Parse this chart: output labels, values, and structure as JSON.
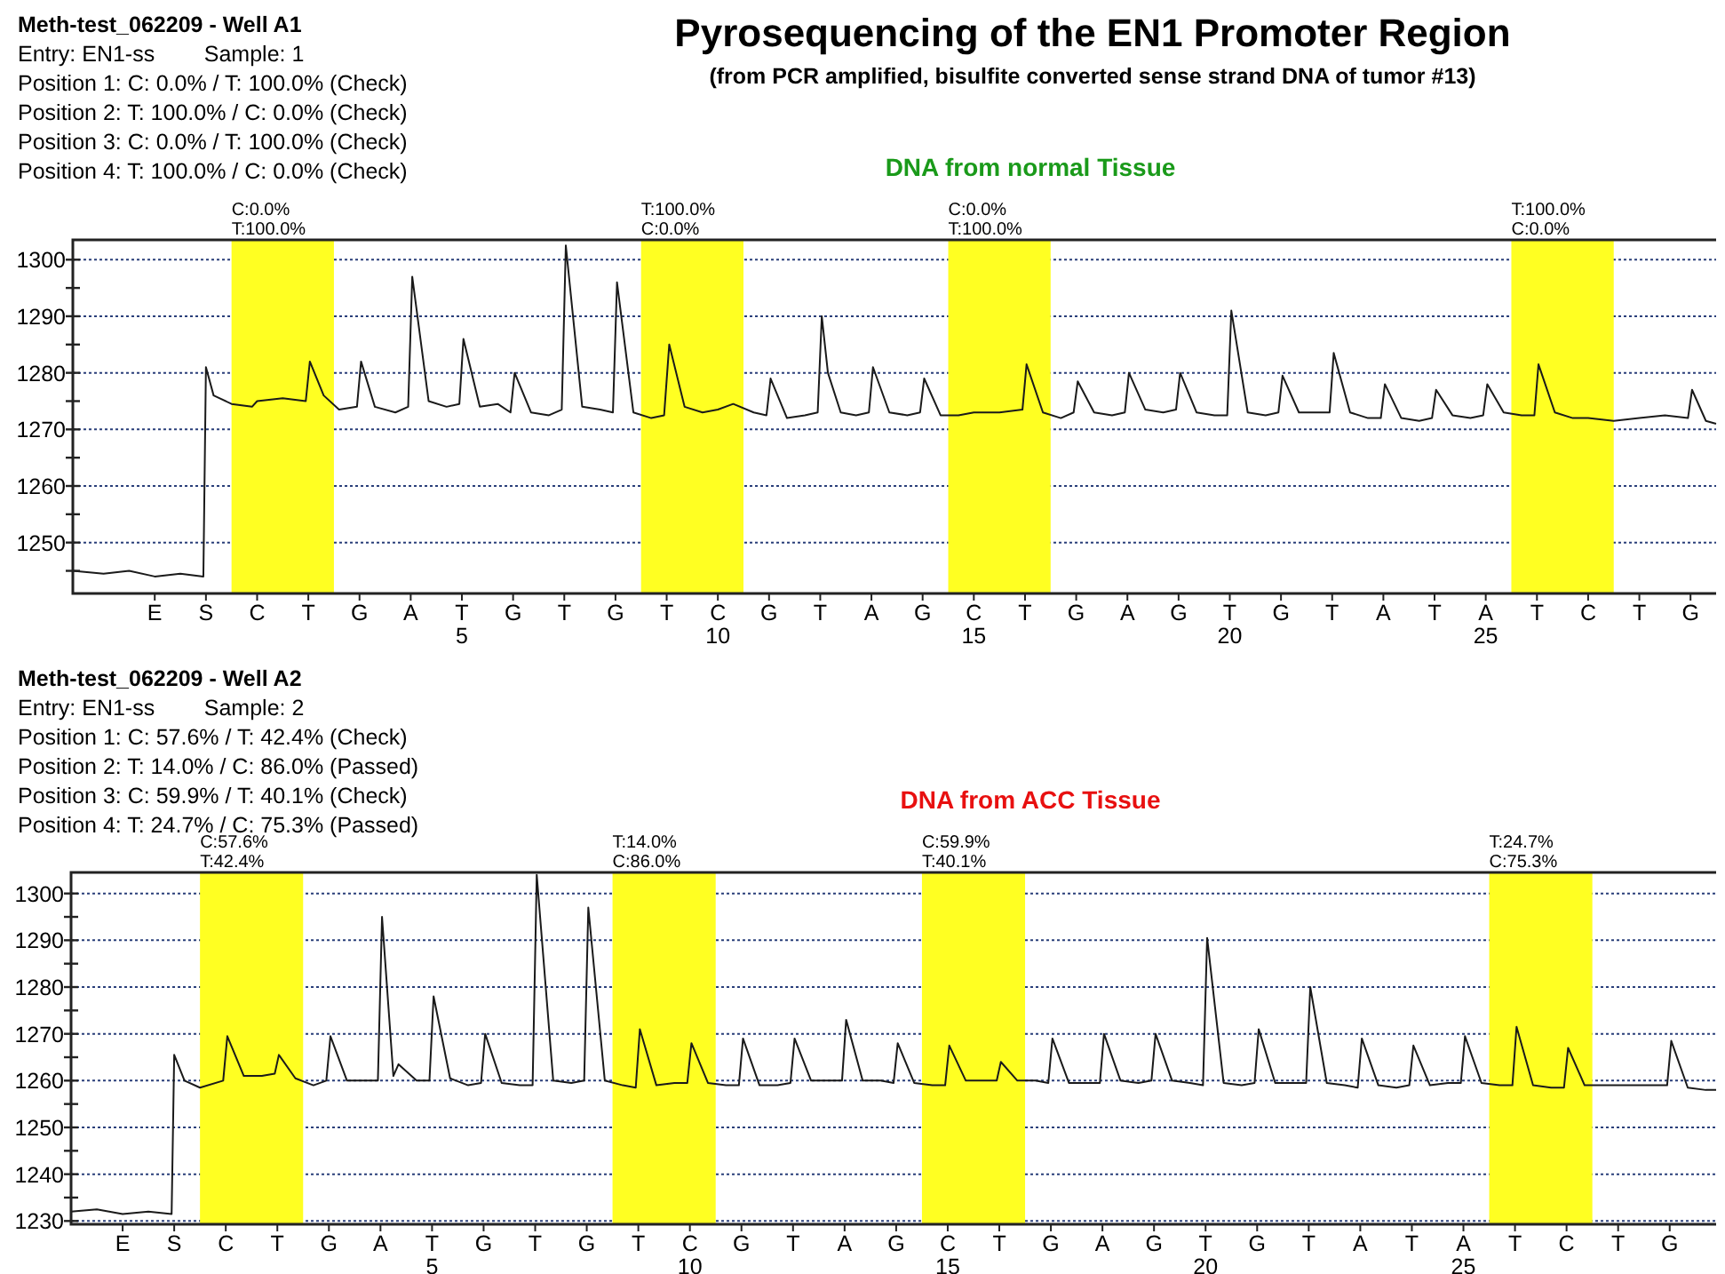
{
  "chart_data": [
    {
      "type": "line",
      "title": "Pyrosequencing of the EN1 Promoter Region",
      "subtitle": "(from PCR amplified, bisulfite converted sense strand DNA of tumor #13)",
      "annotations": [
        "Meth-test_062209 - Well A1",
        "Entry: EN1-ss        Sample: 1",
        "Position 1: C: 0.0% / T: 100.0% (Check)",
        "Position 2: T: 100.0% / C: 0.0% (Check)",
        "Position 3: C: 0.0% / T: 100.0% (Check)",
        "Position 4: T: 100.0% / C: 0.0% (Check)",
        "DNA from normal Tissue",
        "E",
        "S",
        "C",
        "T",
        "G",
        "A",
        "T",
        "G",
        "T",
        "G",
        "T",
        "C",
        "G",
        "T",
        "A",
        "G",
        "C",
        "T",
        "G",
        "A",
        "G",
        "T",
        "G",
        "T",
        "A",
        "T",
        "A",
        "T",
        "C",
        "T",
        "G"
      ],
      "xlim": [
        -2.6,
        29.5
      ],
      "xticks": [
        5,
        10,
        15,
        20,
        25
      ],
      "ylim": [
        1241,
        1303.5
      ],
      "yticks": [
        {
          "value": 1245,
          "label": null
        },
        1250,
        {
          "value": 1255,
          "label": null
        },
        1260,
        {
          "value": 1265,
          "label": null
        },
        1270,
        {
          "value": 1275,
          "label": null
        },
        1280,
        {
          "value": 1285,
          "label": null
        },
        1290,
        {
          "value": 1295,
          "label": null
        },
        1300
      ],
      "grid": "y",
      "bands": [
        {
          "axis": "x",
          "from": 0.5,
          "to": 2.5,
          "label": "C:0.0%\nT:100.0%",
          "color": "#ffff22"
        },
        {
          "axis": "x",
          "from": 8.5,
          "to": 10.5,
          "label": "T:100.0%\nC:0.0%",
          "color": "#ffff22"
        },
        {
          "axis": "x",
          "from": 14.5,
          "to": 16.5,
          "label": "C:0.0%\nT:100.0%",
          "color": "#ffff22"
        },
        {
          "axis": "x",
          "from": 25.5,
          "to": 27.5,
          "label": "T:100.0%\nC:0.0%",
          "color": "#ffff22"
        }
      ],
      "x": [
        -2.6,
        -2.0,
        -1.5,
        -1.0,
        -0.5,
        -0.05,
        0.0,
        0.15,
        0.5,
        0.9,
        1.0,
        1.5,
        1.95,
        2.03,
        2.3,
        2.6,
        2.95,
        3.03,
        3.3,
        3.7,
        3.95,
        4.03,
        4.35,
        4.7,
        4.95,
        5.03,
        5.35,
        5.7,
        5.95,
        6.03,
        6.35,
        6.7,
        6.95,
        7.03,
        7.35,
        7.7,
        7.95,
        8.03,
        8.35,
        8.7,
        8.95,
        9.05,
        9.35,
        9.7,
        10.0,
        10.3,
        10.7,
        10.95,
        11.03,
        11.35,
        11.7,
        11.95,
        12.03,
        12.15,
        12.4,
        12.7,
        12.95,
        13.03,
        13.35,
        13.7,
        13.95,
        14.03,
        14.35,
        14.7,
        15.0,
        15.5,
        15.95,
        16.03,
        16.35,
        16.7,
        16.95,
        17.03,
        17.35,
        17.7,
        17.95,
        18.03,
        18.35,
        18.7,
        18.95,
        19.03,
        19.35,
        19.7,
        19.95,
        20.03,
        20.35,
        20.7,
        20.95,
        21.03,
        21.35,
        21.7,
        21.95,
        22.03,
        22.35,
        22.7,
        22.95,
        23.03,
        23.35,
        23.7,
        23.95,
        24.03,
        24.35,
        24.7,
        24.95,
        25.03,
        25.35,
        25.7,
        25.95,
        26.03,
        26.35,
        26.7,
        27.0,
        27.5,
        28.0,
        28.5,
        28.95,
        29.03,
        29.3,
        29.5
      ],
      "series": [
        {
          "color": "#1a1a1a",
          "values": [
            1245,
            1244.5,
            1245,
            1244,
            1244.5,
            1244,
            1281,
            1276,
            1274.5,
            1274,
            1275,
            1275.5,
            1275,
            1282,
            1276,
            1273.5,
            1274,
            1282,
            1274,
            1273,
            1274,
            1297,
            1275,
            1274,
            1274.5,
            1286,
            1274,
            1274.5,
            1273,
            1280,
            1273,
            1272.5,
            1273.5,
            1302.5,
            1274,
            1273.5,
            1273,
            1296,
            1273,
            1272,
            1272.5,
            1285,
            1274,
            1273,
            1273.5,
            1274.5,
            1273,
            1272.5,
            1279,
            1272,
            1272.5,
            1273,
            1290,
            1280,
            1273,
            1272.5,
            1273,
            1281,
            1273,
            1272.5,
            1273,
            1279,
            1272.5,
            1272.5,
            1273,
            1273,
            1273.5,
            1281.5,
            1273,
            1272,
            1273,
            1278.5,
            1273,
            1272.5,
            1273,
            1280,
            1273.5,
            1273,
            1273.5,
            1280,
            1273,
            1272.5,
            1272.5,
            1291,
            1273,
            1272.5,
            1273,
            1279.5,
            1273,
            1273,
            1273,
            1283.5,
            1273,
            1272,
            1272,
            1278,
            1272,
            1271.5,
            1272,
            1277,
            1272.5,
            1272,
            1272.5,
            1278,
            1273,
            1272.5,
            1272.5,
            1281.5,
            1273,
            1272,
            1272,
            1271.5,
            1272,
            1272.5,
            1272,
            1277,
            1271.5,
            1271
          ]
        }
      ]
    },
    {
      "type": "line",
      "annotations": [
        "Meth-test_062209 - Well A2",
        "Entry: EN1-ss        Sample: 2",
        "Position 1: C: 57.6% / T: 42.4% (Check)",
        "Position 2: T: 14.0% / C: 86.0% (Passed)",
        "Position 3: C: 59.9% / T: 40.1% (Check)",
        "Position 4: T: 24.7% / C: 75.3% (Passed)",
        "DNA from ACC Tissue",
        "E",
        "S",
        "C",
        "T",
        "G",
        "A",
        "T",
        "G",
        "T",
        "G",
        "T",
        "C",
        "G",
        "T",
        "A",
        "G",
        "C",
        "T",
        "G",
        "A",
        "G",
        "T",
        "G",
        "T",
        "A",
        "T",
        "A",
        "T",
        "C",
        "T",
        "G"
      ],
      "xlim": [
        -2,
        29.9
      ],
      "xticks": [
        5,
        10,
        15,
        20,
        25
      ],
      "ylim": [
        1229.3,
        1304.5
      ],
      "yticks": [
        1230,
        {
          "value": 1235,
          "label": null
        },
        1240,
        {
          "value": 1245,
          "label": null
        },
        1250,
        {
          "value": 1255,
          "label": null
        },
        1260,
        {
          "value": 1265,
          "label": null
        },
        1270,
        {
          "value": 1275,
          "label": null
        },
        1280,
        {
          "value": 1285,
          "label": null
        },
        1290,
        {
          "value": 1295,
          "label": null
        },
        1300
      ],
      "grid": "y",
      "bands": [
        {
          "axis": "x",
          "from": 0.5,
          "to": 2.5,
          "label": "C:57.6%\nT:42.4%",
          "color": "#ffff22"
        },
        {
          "axis": "x",
          "from": 8.5,
          "to": 10.5,
          "label": "T:14.0%\nC:86.0%",
          "color": "#ffff22"
        },
        {
          "axis": "x",
          "from": 14.5,
          "to": 16.5,
          "label": "C:59.9%\nT:40.1%",
          "color": "#ffff22"
        },
        {
          "axis": "x",
          "from": 25.5,
          "to": 27.5,
          "label": "T:24.7%\nC:75.3%",
          "color": "#ffff22"
        }
      ],
      "x": [
        -2.0,
        -1.5,
        -1.0,
        -0.5,
        -0.05,
        0.0,
        0.2,
        0.5,
        0.95,
        1.03,
        1.35,
        1.7,
        1.95,
        2.03,
        2.35,
        2.7,
        2.95,
        3.03,
        3.35,
        3.7,
        3.95,
        4.03,
        4.25,
        4.35,
        4.7,
        4.95,
        5.03,
        5.35,
        5.7,
        5.95,
        6.03,
        6.35,
        6.7,
        6.95,
        7.03,
        7.35,
        7.7,
        7.95,
        8.03,
        8.35,
        8.7,
        8.95,
        9.03,
        9.35,
        9.7,
        9.95,
        10.03,
        10.35,
        10.7,
        10.95,
        11.03,
        11.35,
        11.7,
        11.95,
        12.03,
        12.35,
        12.7,
        12.95,
        13.03,
        13.35,
        13.7,
        13.95,
        14.03,
        14.35,
        14.7,
        14.95,
        15.03,
        15.35,
        15.7,
        15.95,
        16.03,
        16.35,
        16.7,
        16.95,
        17.03,
        17.35,
        17.7,
        17.95,
        18.03,
        18.35,
        18.7,
        18.95,
        19.03,
        19.35,
        19.7,
        19.95,
        20.03,
        20.35,
        20.7,
        20.95,
        21.03,
        21.35,
        21.7,
        21.95,
        22.03,
        22.35,
        22.7,
        22.95,
        23.03,
        23.35,
        23.7,
        23.95,
        24.03,
        24.35,
        24.7,
        24.95,
        25.03,
        25.35,
        25.7,
        25.95,
        26.03,
        26.35,
        26.7,
        26.95,
        27.03,
        27.35,
        27.7,
        28.0,
        28.5,
        28.95,
        29.03,
        29.35,
        29.7,
        29.9
      ],
      "series": [
        {
          "color": "#1a1a1a",
          "values": [
            1232,
            1232.5,
            1231.5,
            1232,
            1231.5,
            1265.5,
            1260,
            1258.5,
            1260,
            1269.5,
            1261,
            1261,
            1261.5,
            1265.5,
            1260.5,
            1259,
            1260,
            1269.5,
            1260,
            1260,
            1260,
            1295,
            1261,
            1263.5,
            1260,
            1260,
            1278,
            1260.5,
            1259,
            1259.5,
            1270,
            1259.5,
            1259,
            1259,
            1304,
            1260,
            1259.5,
            1260,
            1297,
            1260,
            1259,
            1258.5,
            1271,
            1259,
            1259.5,
            1259.5,
            1268,
            1259.5,
            1259,
            1259,
            1269,
            1259,
            1259,
            1259.5,
            1269,
            1260,
            1260,
            1260,
            1273,
            1260,
            1260,
            1259.5,
            1268,
            1259.5,
            1259,
            1259,
            1267.5,
            1260,
            1260,
            1260,
            1264,
            1260,
            1260,
            1259.5,
            1269,
            1259.5,
            1259.5,
            1259.5,
            1270,
            1260,
            1259.5,
            1260,
            1270,
            1260,
            1259.5,
            1259,
            1290.5,
            1259.5,
            1259,
            1259.5,
            1271,
            1259.5,
            1259.5,
            1259.5,
            1280,
            1259.5,
            1259,
            1258.5,
            1269,
            1259,
            1258.5,
            1259,
            1267.5,
            1259,
            1259.5,
            1259.5,
            1269.5,
            1259.5,
            1259,
            1259,
            1271.5,
            1259,
            1258.5,
            1258.5,
            1267,
            1259,
            1259,
            1259,
            1259,
            1259,
            1268.5,
            1258.5,
            1258,
            1258
          ]
        }
      ]
    }
  ]
}
